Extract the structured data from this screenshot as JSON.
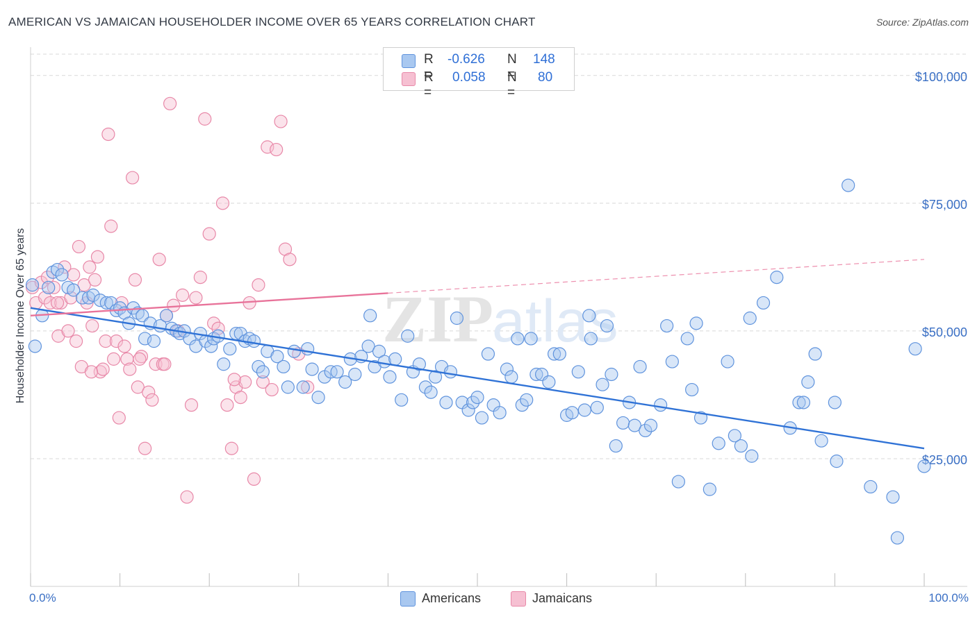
{
  "title": "AMERICAN VS JAMAICAN HOUSEHOLDER INCOME OVER 65 YEARS CORRELATION CHART",
  "source": "Source: ZipAtlas.com",
  "watermark": {
    "zip": "ZIP",
    "atlas": "atlas"
  },
  "colors": {
    "americans_fill": "#a9c8f0",
    "americans_stroke": "#5f93dd",
    "americans_line": "#2f72d6",
    "jamaicans_fill": "#f6c0d2",
    "jamaicans_stroke": "#e888a8",
    "jamaicans_line": "#e8739a",
    "axis_label": "#3a6fc4",
    "grid": "#d8d8d8"
  },
  "stats": {
    "americans": {
      "r_label": "R =",
      "r": "-0.626",
      "n_label": "N =",
      "n": "148"
    },
    "jamaicans": {
      "r_label": "R =",
      "r": "0.058",
      "n_label": "N =",
      "n": "80"
    }
  },
  "legend": {
    "americans": "Americans",
    "jamaicans": "Jamaicans"
  },
  "chart_data": {
    "type": "scatter",
    "title": "AMERICAN VS JAMAICAN HOUSEHOLDER INCOME OVER 65 YEARS CORRELATION CHART",
    "xlabel": "",
    "ylabel": "Householder Income Over 65 years",
    "xlim": [
      0,
      100
    ],
    "ylim": [
      0,
      105000
    ],
    "x_tick_labels": {
      "min": "0.0%",
      "max": "100.0%"
    },
    "y_ticks": [
      {
        "value": 25000,
        "label": "$25,000"
      },
      {
        "value": 50000,
        "label": "$50,000"
      },
      {
        "value": 75000,
        "label": "$75,000"
      },
      {
        "value": 100000,
        "label": "$100,000"
      }
    ],
    "grid": true,
    "series": [
      {
        "name": "Americans",
        "trend": {
          "x0": 0,
          "y0": 54500,
          "x1": 100,
          "y1": 27000,
          "dashed_from": null
        },
        "points": [
          [
            0.2,
            59000
          ],
          [
            0.5,
            47000
          ],
          [
            1.3,
            53000
          ],
          [
            2,
            58500
          ],
          [
            2.5,
            61500
          ],
          [
            3,
            62000
          ],
          [
            3.5,
            61000
          ],
          [
            4.2,
            58500
          ],
          [
            4.8,
            58000
          ],
          [
            5.8,
            56500
          ],
          [
            6.5,
            56500
          ],
          [
            7,
            57000
          ],
          [
            7.8,
            56000
          ],
          [
            8.5,
            55500
          ],
          [
            9,
            55500
          ],
          [
            9.6,
            54000
          ],
          [
            10,
            54500
          ],
          [
            10.5,
            53500
          ],
          [
            11,
            51500
          ],
          [
            11.5,
            54500
          ],
          [
            12,
            53500
          ],
          [
            12.5,
            53000
          ],
          [
            12.8,
            48500
          ],
          [
            13.4,
            51500
          ],
          [
            13.8,
            48000
          ],
          [
            14.5,
            51000
          ],
          [
            15.2,
            53000
          ],
          [
            15.8,
            50500
          ],
          [
            16.3,
            50000
          ],
          [
            16.7,
            49500
          ],
          [
            17.2,
            50000
          ],
          [
            17.8,
            48500
          ],
          [
            18.5,
            47000
          ],
          [
            19,
            49500
          ],
          [
            19.6,
            48000
          ],
          [
            20.2,
            47000
          ],
          [
            20.5,
            48500
          ],
          [
            21,
            49000
          ],
          [
            21.6,
            43500
          ],
          [
            22.3,
            46500
          ],
          [
            23,
            49500
          ],
          [
            23.5,
            49500
          ],
          [
            24,
            48000
          ],
          [
            24.5,
            48500
          ],
          [
            25,
            48000
          ],
          [
            25.5,
            43000
          ],
          [
            26,
            42000
          ],
          [
            26.5,
            46000
          ],
          [
            27.6,
            45000
          ],
          [
            28.3,
            43000
          ],
          [
            28.8,
            39000
          ],
          [
            29.5,
            46000
          ],
          [
            30.5,
            39000
          ],
          [
            31,
            46500
          ],
          [
            31.5,
            42500
          ],
          [
            32.2,
            37000
          ],
          [
            32.9,
            41000
          ],
          [
            33.6,
            42000
          ],
          [
            34.3,
            42000
          ],
          [
            35.2,
            40000
          ],
          [
            35.8,
            44500
          ],
          [
            36.3,
            41500
          ],
          [
            37,
            45000
          ],
          [
            37.8,
            47000
          ],
          [
            38,
            53000
          ],
          [
            38.5,
            43000
          ],
          [
            39,
            46000
          ],
          [
            39.6,
            44000
          ],
          [
            40.2,
            41000
          ],
          [
            40.8,
            44500
          ],
          [
            41.5,
            36500
          ],
          [
            42.2,
            49000
          ],
          [
            42.8,
            42000
          ],
          [
            43.5,
            43500
          ],
          [
            44.2,
            39000
          ],
          [
            44.8,
            38000
          ],
          [
            45.3,
            41000
          ],
          [
            46,
            43000
          ],
          [
            46.5,
            36000
          ],
          [
            47,
            42000
          ],
          [
            47.7,
            52500
          ],
          [
            48.3,
            36000
          ],
          [
            49,
            34500
          ],
          [
            49.5,
            36000
          ],
          [
            50,
            37000
          ],
          [
            50.5,
            33000
          ],
          [
            51.2,
            45500
          ],
          [
            51.8,
            35500
          ],
          [
            52.5,
            34000
          ],
          [
            53.3,
            42500
          ],
          [
            53.8,
            41000
          ],
          [
            54.5,
            48500
          ],
          [
            55,
            35500
          ],
          [
            55.5,
            36500
          ],
          [
            56,
            48500
          ],
          [
            56.6,
            41500
          ],
          [
            57.2,
            41500
          ],
          [
            58,
            40000
          ],
          [
            58.6,
            45500
          ],
          [
            59.2,
            45500
          ],
          [
            60,
            33500
          ],
          [
            60.6,
            34000
          ],
          [
            61.3,
            42000
          ],
          [
            62,
            34500
          ],
          [
            62.7,
            48500
          ],
          [
            62.5,
            53000
          ],
          [
            63.4,
            35000
          ],
          [
            64,
            39500
          ],
          [
            64.5,
            51000
          ],
          [
            65,
            41500
          ],
          [
            65.5,
            27500
          ],
          [
            66.3,
            32000
          ],
          [
            67,
            36000
          ],
          [
            67.6,
            31500
          ],
          [
            68.2,
            43000
          ],
          [
            68.8,
            30500
          ],
          [
            69.4,
            31500
          ],
          [
            70.5,
            35500
          ],
          [
            71.2,
            51000
          ],
          [
            71.8,
            44000
          ],
          [
            72.5,
            20500
          ],
          [
            73.5,
            48500
          ],
          [
            74,
            38500
          ],
          [
            74.5,
            51500
          ],
          [
            75,
            33000
          ],
          [
            76,
            19000
          ],
          [
            77,
            28000
          ],
          [
            78,
            44000
          ],
          [
            78.8,
            29500
          ],
          [
            79.5,
            27500
          ],
          [
            80.5,
            52500
          ],
          [
            80.7,
            25500
          ],
          [
            82,
            55500
          ],
          [
            83.5,
            60500
          ],
          [
            85,
            31000
          ],
          [
            86,
            36000
          ],
          [
            86.5,
            36000
          ],
          [
            87,
            40000
          ],
          [
            87.8,
            45500
          ],
          [
            88.5,
            28500
          ],
          [
            90,
            36000
          ],
          [
            90.2,
            24500
          ],
          [
            91.5,
            78500
          ],
          [
            94,
            19500
          ],
          [
            96.5,
            17500
          ],
          [
            99,
            46500
          ],
          [
            100,
            23500
          ],
          [
            97,
            9500
          ]
        ]
      },
      {
        "name": "Jamaicans",
        "trend": {
          "x0": 0,
          "y0": 53000,
          "x1": 100,
          "y1": 64000,
          "dashed_from": 40
        },
        "points": [
          [
            0.2,
            58500
          ],
          [
            0.6,
            55500
          ],
          [
            1.2,
            59500
          ],
          [
            1.6,
            56500
          ],
          [
            1.9,
            60500
          ],
          [
            2.2,
            55500
          ],
          [
            2.6,
            58500
          ],
          [
            3.1,
            49000
          ],
          [
            3.4,
            55500
          ],
          [
            3.8,
            62500
          ],
          [
            4.2,
            50000
          ],
          [
            4.5,
            56500
          ],
          [
            4.8,
            61000
          ],
          [
            5.1,
            48000
          ],
          [
            5.4,
            66500
          ],
          [
            5.7,
            43000
          ],
          [
            6,
            59000
          ],
          [
            6.3,
            55500
          ],
          [
            6.6,
            62500
          ],
          [
            6.9,
            51000
          ],
          [
            7.2,
            60000
          ],
          [
            7.5,
            64500
          ],
          [
            7.8,
            42000
          ],
          [
            8.1,
            42500
          ],
          [
            8.4,
            48000
          ],
          [
            8.7,
            88500
          ],
          [
            9,
            70500
          ],
          [
            9.3,
            44500
          ],
          [
            9.6,
            48000
          ],
          [
            9.9,
            33000
          ],
          [
            10.2,
            55500
          ],
          [
            10.5,
            47000
          ],
          [
            10.8,
            44500
          ],
          [
            11.1,
            42500
          ],
          [
            11.4,
            80000
          ],
          [
            11.7,
            60000
          ],
          [
            12,
            39000
          ],
          [
            12.4,
            45000
          ],
          [
            12.8,
            27000
          ],
          [
            13.2,
            38000
          ],
          [
            13.6,
            36500
          ],
          [
            14,
            43500
          ],
          [
            14.4,
            64000
          ],
          [
            14.8,
            43500
          ],
          [
            15.2,
            53000
          ],
          [
            15.6,
            94500
          ],
          [
            16,
            55000
          ],
          [
            16.5,
            50000
          ],
          [
            17,
            57000
          ],
          [
            17.5,
            17500
          ],
          [
            18,
            35500
          ],
          [
            18.5,
            56500
          ],
          [
            19,
            60500
          ],
          [
            19.5,
            91500
          ],
          [
            20,
            69000
          ],
          [
            20.5,
            51500
          ],
          [
            21,
            50500
          ],
          [
            21.5,
            75000
          ],
          [
            22,
            35500
          ],
          [
            22.5,
            27000
          ],
          [
            23,
            39000
          ],
          [
            23.5,
            37000
          ],
          [
            24,
            40000
          ],
          [
            24.5,
            55500
          ],
          [
            25,
            21000
          ],
          [
            25.5,
            59000
          ],
          [
            26,
            40000
          ],
          [
            26.5,
            86000
          ],
          [
            27,
            38500
          ],
          [
            27.5,
            85500
          ],
          [
            28,
            91000
          ],
          [
            28.5,
            66000
          ],
          [
            29,
            64000
          ],
          [
            30,
            45500
          ],
          [
            31,
            39000
          ],
          [
            12.2,
            44500
          ],
          [
            3,
            55500
          ],
          [
            6.8,
            42000
          ],
          [
            15,
            43500
          ],
          [
            22.8,
            40500
          ]
        ]
      }
    ]
  }
}
